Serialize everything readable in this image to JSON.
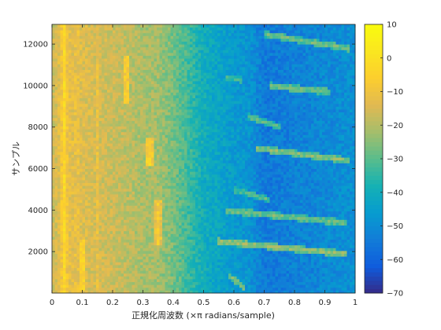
{
  "chart_data": {
    "type": "heatmap",
    "title": "",
    "xlabel": "正規化周波数 (×π radians/sample)",
    "ylabel": "サンプル",
    "xlim": [
      0,
      1
    ],
    "ylim": [
      0,
      12950
    ],
    "x_ticks": [
      {
        "value": 0,
        "label": "0"
      },
      {
        "value": 0.1,
        "label": "0.1"
      },
      {
        "value": 0.2,
        "label": "0.2"
      },
      {
        "value": 0.3,
        "label": "0.3"
      },
      {
        "value": 0.4,
        "label": "0.4"
      },
      {
        "value": 0.5,
        "label": "0.5"
      },
      {
        "value": 0.6,
        "label": "0.6"
      },
      {
        "value": 0.7,
        "label": "0.7"
      },
      {
        "value": 0.8,
        "label": "0.8"
      },
      {
        "value": 0.9,
        "label": "0.9"
      },
      {
        "value": 1,
        "label": "1"
      }
    ],
    "y_ticks": [
      {
        "value": 2000,
        "label": "2000"
      },
      {
        "value": 4000,
        "label": "4000"
      },
      {
        "value": 6000,
        "label": "6000"
      },
      {
        "value": 8000,
        "label": "8000"
      },
      {
        "value": 10000,
        "label": "10000"
      },
      {
        "value": 12000,
        "label": "12000"
      }
    ],
    "colorbar": {
      "colormap": "parula",
      "range": [
        -70,
        10
      ],
      "ticks": [
        {
          "value": 10,
          "label": "10"
        },
        {
          "value": 0,
          "label": "0"
        },
        {
          "value": -10,
          "label": "−10"
        },
        {
          "value": -20,
          "label": "−20"
        },
        {
          "value": -30,
          "label": "−30"
        },
        {
          "value": -40,
          "label": "−40"
        },
        {
          "value": -50,
          "label": "−50"
        },
        {
          "value": -60,
          "label": "−60"
        },
        {
          "value": -70,
          "label": "−70"
        }
      ]
    },
    "heatmap_model": {
      "level_profile": [
        [
          0,
          -18
        ],
        [
          0.03,
          -12
        ],
        [
          0.04,
          -2
        ],
        [
          0.05,
          -12
        ],
        [
          0.1,
          -14
        ],
        [
          0.2,
          -17
        ],
        [
          0.25,
          -19
        ],
        [
          0.3,
          -21
        ],
        [
          0.35,
          -22
        ],
        [
          0.4,
          -27
        ],
        [
          0.45,
          -33
        ],
        [
          0.5,
          -40
        ],
        [
          0.55,
          -43
        ],
        [
          0.6,
          -46
        ],
        [
          0.65,
          -48
        ],
        [
          0.7,
          -55
        ],
        [
          0.8,
          -53
        ],
        [
          0.9,
          -51
        ],
        [
          1,
          -49
        ]
      ],
      "vertical_ridges": [
        {
          "freq": 0.04,
          "y_range": [
            0,
            12950
          ],
          "level": -6
        },
        {
          "freq": 0.082,
          "y_range": [
            0,
            12950
          ],
          "level": -10
        },
        {
          "freq": 0.15,
          "y_range": [
            0,
            12950
          ],
          "level": -12
        },
        {
          "freq": 0.245,
          "y_range": [
            9200,
            11500
          ],
          "level": -6
        },
        {
          "freq": 0.32,
          "y_range": [
            6200,
            7500
          ],
          "level": -4
        },
        {
          "freq": 0.35,
          "y_range": [
            2300,
            4500
          ],
          "level": -8
        },
        {
          "freq": 0.1,
          "y_range": [
            200,
            2600
          ],
          "level": -3
        }
      ],
      "sweep_lines": [
        {
          "f0": 0.58,
          "f1": 0.64,
          "y0": 900,
          "y1": 200,
          "level": -25
        },
        {
          "f0": 0.55,
          "f1": 0.97,
          "y0": 2500,
          "y1": 1900,
          "level": -22
        },
        {
          "f0": 0.57,
          "f1": 0.97,
          "y0": 4000,
          "y1": 3400,
          "level": -26
        },
        {
          "f0": 0.6,
          "f1": 0.72,
          "y0": 5000,
          "y1": 4500,
          "level": -30
        },
        {
          "f0": 0.67,
          "f1": 0.98,
          "y0": 7000,
          "y1": 6400,
          "level": -24
        },
        {
          "f0": 0.65,
          "f1": 0.75,
          "y0": 8500,
          "y1": 8000,
          "level": -28
        },
        {
          "f0": 0.72,
          "f1": 0.92,
          "y0": 10000,
          "y1": 9700,
          "level": -26
        },
        {
          "f0": 0.57,
          "f1": 0.63,
          "y0": 10400,
          "y1": 10300,
          "level": -30
        },
        {
          "f0": 0.7,
          "f1": 0.98,
          "y0": 12500,
          "y1": 11800,
          "level": -26
        }
      ]
    }
  }
}
